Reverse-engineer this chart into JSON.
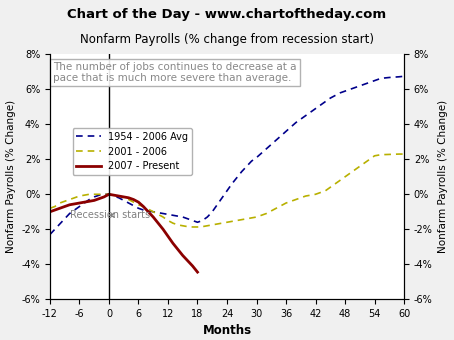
{
  "title_banner": "Chart of the Day - www.chartoftheday.com",
  "title_banner_bg": "#b5bd4f",
  "subtitle": "Nonfarm Payrolls (% change from recession start)",
  "annotation": "The number of jobs continues to decrease at a\npace that is much more severe than average.",
  "ylabel": "Nonfarm Payrolls (% Change)",
  "xlabel": "Months",
  "xlim": [
    -12,
    60
  ],
  "ylim": [
    -6,
    8
  ],
  "xticks": [
    -12,
    -6,
    0,
    6,
    12,
    18,
    24,
    30,
    36,
    42,
    48,
    54,
    60
  ],
  "yticks": [
    -6,
    -4,
    -2,
    0,
    2,
    4,
    6,
    8
  ],
  "bg_color": "#f0f0f0",
  "plot_bg": "#ffffff",
  "avg_color": "#00008b",
  "avg_label": "1954 - 2006 Avg",
  "r2001_color": "#b8b000",
  "r2001_label": "2001 - 2006",
  "r2007_color": "#8b0000",
  "r2007_label": "2007 - Present",
  "avg_x": [
    -12,
    -11,
    -10,
    -9,
    -8,
    -7,
    -6,
    -5,
    -4,
    -3,
    -2,
    -1,
    0,
    1,
    2,
    3,
    4,
    5,
    6,
    7,
    8,
    9,
    10,
    11,
    12,
    13,
    14,
    15,
    16,
    17,
    18,
    19,
    20,
    21,
    22,
    23,
    24,
    25,
    26,
    27,
    28,
    29,
    30,
    31,
    32,
    33,
    34,
    35,
    36,
    37,
    38,
    39,
    40,
    41,
    42,
    43,
    44,
    45,
    46,
    47,
    48,
    49,
    50,
    51,
    52,
    53,
    54,
    55,
    56,
    57,
    58,
    59,
    60
  ],
  "avg_y": [
    -2.3,
    -2.0,
    -1.7,
    -1.4,
    -1.1,
    -0.9,
    -0.7,
    -0.5,
    -0.3,
    -0.15,
    -0.05,
    0.0,
    0.0,
    -0.1,
    -0.2,
    -0.35,
    -0.5,
    -0.65,
    -0.8,
    -0.9,
    -0.95,
    -1.0,
    -1.05,
    -1.1,
    -1.15,
    -1.2,
    -1.25,
    -1.3,
    -1.4,
    -1.5,
    -1.6,
    -1.5,
    -1.3,
    -1.0,
    -0.6,
    -0.2,
    0.2,
    0.6,
    0.95,
    1.3,
    1.6,
    1.9,
    2.1,
    2.35,
    2.6,
    2.85,
    3.1,
    3.35,
    3.6,
    3.85,
    4.1,
    4.3,
    4.5,
    4.7,
    4.9,
    5.1,
    5.3,
    5.5,
    5.65,
    5.8,
    5.9,
    6.0,
    6.1,
    6.2,
    6.3,
    6.4,
    6.5,
    6.6,
    6.65,
    6.68,
    6.7,
    6.72,
    6.75
  ],
  "r2001_x": [
    -12,
    -11,
    -10,
    -9,
    -8,
    -7,
    -6,
    -5,
    -4,
    -3,
    -2,
    -1,
    0,
    1,
    2,
    3,
    4,
    5,
    6,
    7,
    8,
    9,
    10,
    11,
    12,
    13,
    14,
    15,
    16,
    17,
    18,
    19,
    20,
    21,
    22,
    23,
    24,
    25,
    26,
    27,
    28,
    29,
    30,
    31,
    32,
    33,
    34,
    35,
    36,
    37,
    38,
    39,
    40,
    41,
    42,
    43,
    44,
    45,
    46,
    47,
    48,
    49,
    50,
    51,
    52,
    53,
    54,
    55,
    56,
    57,
    58,
    59,
    60
  ],
  "r2001_y": [
    -0.8,
    -0.7,
    -0.5,
    -0.4,
    -0.3,
    -0.2,
    -0.1,
    -0.05,
    0.0,
    0.0,
    0.0,
    0.0,
    0.0,
    -0.05,
    -0.1,
    -0.2,
    -0.3,
    -0.45,
    -0.6,
    -0.7,
    -0.85,
    -1.0,
    -1.15,
    -1.3,
    -1.5,
    -1.65,
    -1.75,
    -1.8,
    -1.85,
    -1.87,
    -1.87,
    -1.85,
    -1.8,
    -1.75,
    -1.7,
    -1.65,
    -1.6,
    -1.55,
    -1.5,
    -1.45,
    -1.4,
    -1.35,
    -1.3,
    -1.2,
    -1.1,
    -0.95,
    -0.8,
    -0.65,
    -0.5,
    -0.4,
    -0.3,
    -0.2,
    -0.1,
    -0.05,
    0.0,
    0.1,
    0.2,
    0.4,
    0.6,
    0.8,
    1.0,
    1.2,
    1.4,
    1.6,
    1.8,
    2.0,
    2.2,
    2.25,
    2.27,
    2.28,
    2.29,
    2.3,
    2.3
  ],
  "r2007_x": [
    -12,
    -11,
    -10,
    -9,
    -8,
    -7,
    -6,
    -5,
    -4,
    -3,
    -2,
    -1,
    0,
    1,
    2,
    3,
    4,
    5,
    6,
    7,
    8,
    9,
    10,
    11,
    12,
    13,
    14,
    15,
    16,
    17,
    18
  ],
  "r2007_y": [
    -1.0,
    -0.9,
    -0.8,
    -0.7,
    -0.6,
    -0.55,
    -0.5,
    -0.45,
    -0.4,
    -0.35,
    -0.25,
    -0.15,
    0.0,
    -0.05,
    -0.1,
    -0.15,
    -0.2,
    -0.3,
    -0.45,
    -0.7,
    -1.0,
    -1.3,
    -1.65,
    -2.0,
    -2.4,
    -2.8,
    -3.15,
    -3.5,
    -3.8,
    -4.1,
    -4.45
  ]
}
